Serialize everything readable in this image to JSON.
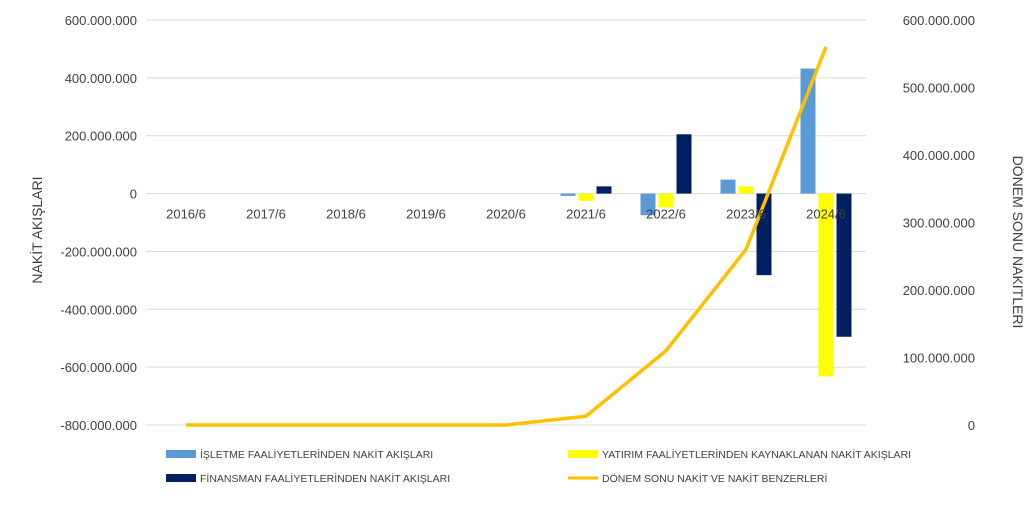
{
  "chart_data": {
    "type": "bar",
    "categories": [
      "2016/6",
      "2017/6",
      "2018/6",
      "2019/6",
      "2020/6",
      "2021/6",
      "2022/6",
      "2023/6",
      "2024/6"
    ],
    "series": [
      {
        "name": "İŞLETME FAALİYETLERİNDEN NAKİT AKIŞLARI",
        "type": "bar",
        "axis": "left",
        "color": "#5b9bd5",
        "values": [
          0,
          0,
          0,
          0,
          0,
          -8000000,
          -75000000,
          48000000,
          432000000
        ]
      },
      {
        "name": "YATIRIM FAALİYETLERİNDEN KAYNAKLANAN NAKİT AKIŞLARI",
        "type": "bar",
        "axis": "left",
        "color": "#ffff00",
        "values": [
          0,
          0,
          0,
          0,
          0,
          -25000000,
          -48000000,
          25000000,
          -632000000
        ]
      },
      {
        "name": "FİNANSMAN FAALİYETLERİNDEN NAKİT AKIŞLARI",
        "type": "bar",
        "axis": "left",
        "color": "#002060",
        "values": [
          0,
          0,
          0,
          0,
          0,
          25000000,
          205000000,
          -282000000,
          -495000000
        ]
      },
      {
        "name": "DÖNEM SONU NAKİT VE NAKİT BENZERLERİ",
        "type": "line",
        "axis": "right",
        "color": "#ffc000",
        "values": [
          0,
          0,
          0,
          0,
          0,
          13000000,
          110000000,
          260000000,
          560000000
        ]
      }
    ],
    "y_left": {
      "label": "NAKİT AKIŞLARI",
      "ylim": [
        -800000000,
        600000000
      ],
      "ticks": [
        600000000,
        400000000,
        200000000,
        0,
        -200000000,
        -400000000,
        -600000000,
        -800000000
      ],
      "tick_labels": [
        "600.000.000",
        "400.000.000",
        "200.000.000",
        "0",
        "-200.000.000",
        "-400.000.000",
        "-600.000.000",
        "-800.000.000"
      ]
    },
    "y_right": {
      "label": "DÖNEM SONU NAKİTLERİ",
      "ylim": [
        0,
        600000000
      ],
      "ticks": [
        600000000,
        500000000,
        400000000,
        300000000,
        200000000,
        100000000,
        0
      ],
      "tick_labels": [
        "600.000.000",
        "500.000.000",
        "400.000.000",
        "300.000.000",
        "200.000.000",
        "100.000.000",
        "0"
      ]
    },
    "grid": true,
    "legend": "bottom"
  }
}
